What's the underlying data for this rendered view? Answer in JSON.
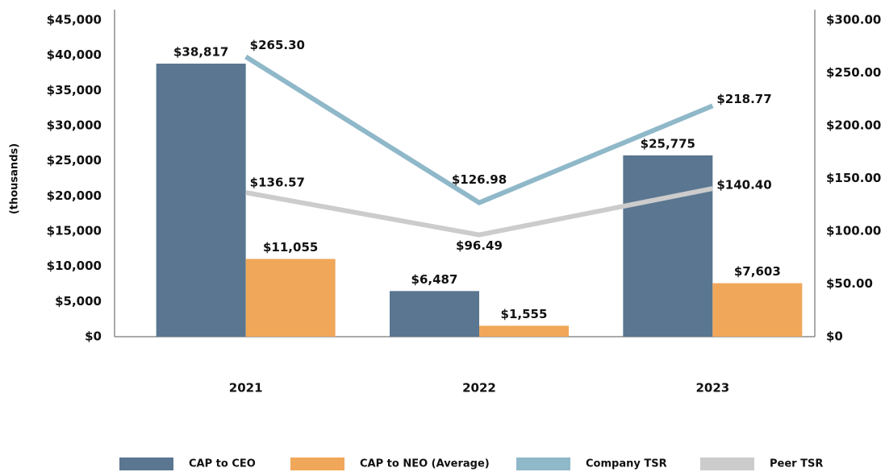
{
  "chart_data": {
    "type": "bar_line",
    "y_label": "(thousands)",
    "categories": [
      "2021",
      "2022",
      "2023"
    ],
    "series": [
      {
        "name": "CAP to CEO",
        "type": "bar",
        "color": "#5a7690",
        "values": [
          38817,
          6487,
          25775
        ],
        "value_labels": [
          "$38,817",
          "$6,487",
          "$25,775"
        ]
      },
      {
        "name": "CAP to NEO (Average)",
        "type": "bar",
        "color": "#f0a75a",
        "values": [
          11055,
          1555,
          7603
        ],
        "value_labels": [
          "$11,055",
          "$1,555",
          "$7,603"
        ]
      },
      {
        "name": "Company TSR",
        "type": "line",
        "axis": "y2",
        "color": "#8fb8c9",
        "values": [
          265.3,
          126.98,
          218.77
        ],
        "value_labels": [
          "$265.30",
          "$126.98",
          "$218.77"
        ]
      },
      {
        "name": "Peer TSR",
        "type": "line",
        "axis": "y2",
        "color": "#cccccc",
        "values": [
          136.57,
          96.49,
          140.4
        ],
        "value_labels": [
          "$136.57",
          "$96.49",
          "$140.40"
        ]
      }
    ],
    "ylim": [
      0,
      45000
    ],
    "yticks": [
      {
        "value": 0,
        "label": "$0"
      },
      {
        "value": 5000,
        "label": "$5,000"
      },
      {
        "value": 10000,
        "label": "$10,000"
      },
      {
        "value": 15000,
        "label": "$15,000"
      },
      {
        "value": 20000,
        "label": "$20,000"
      },
      {
        "value": 25000,
        "label": "$25,000"
      },
      {
        "value": 30000,
        "label": "$30,000"
      },
      {
        "value": 35000,
        "label": "$35,000"
      },
      {
        "value": 40000,
        "label": "$40,000"
      },
      {
        "value": 45000,
        "label": "$45,000"
      }
    ],
    "y2lim": [
      0,
      300
    ],
    "y2ticks": [
      {
        "value": 0,
        "label": "$0"
      },
      {
        "value": 50,
        "label": "$50.00"
      },
      {
        "value": 100,
        "label": "$100.00"
      },
      {
        "value": 150,
        "label": "$150.00"
      },
      {
        "value": 200,
        "label": "$200.00"
      },
      {
        "value": 250,
        "label": "$250.00"
      },
      {
        "value": 300,
        "label": "$300.00"
      }
    ],
    "legend": "bottom"
  }
}
